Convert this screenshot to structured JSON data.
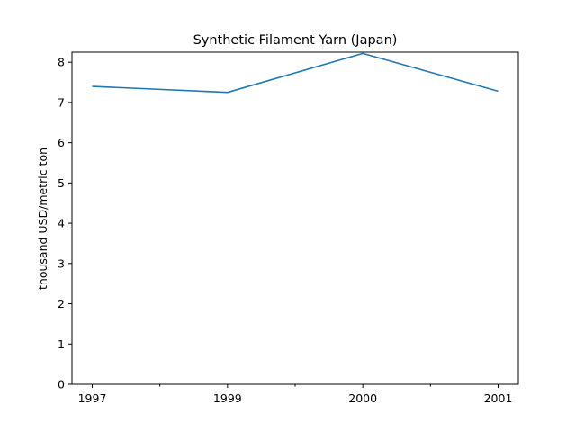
{
  "chart_data": {
    "type": "line",
    "title": "Synthetic Filament Yarn (Japan)",
    "xlabel": "",
    "ylabel": "thousand USD/metric ton",
    "categories": [
      "1997",
      "1999",
      "2000",
      "2001"
    ],
    "minor_ticks_between_categories": true,
    "ylim": [
      0,
      8.25
    ],
    "yticks": [
      0,
      1,
      2,
      3,
      4,
      5,
      6,
      7,
      8
    ],
    "grid": false,
    "legend": "none",
    "series": [
      {
        "values": [
          7.4,
          7.25,
          8.22,
          7.28
        ],
        "color": "#1f77b4"
      }
    ]
  }
}
